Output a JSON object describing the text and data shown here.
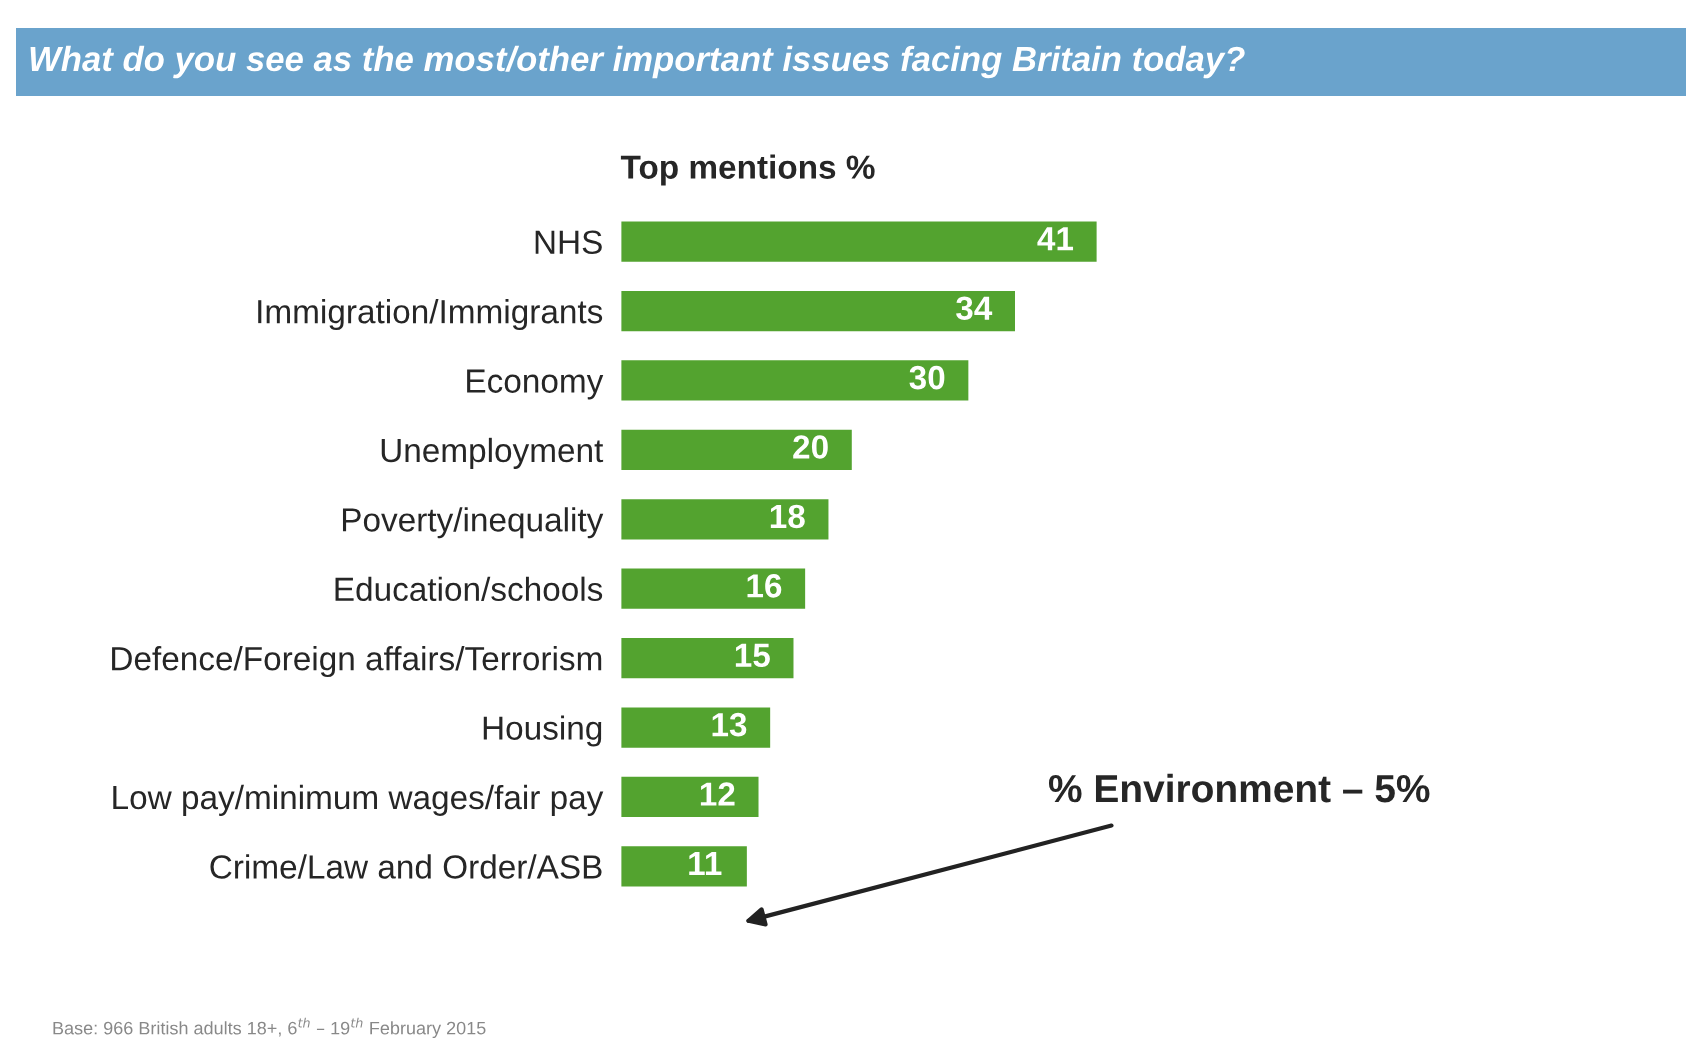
{
  "chart_data": {
    "type": "bar",
    "orientation": "horizontal",
    "title": "What do you see as the most/other important issues facing Britain today?",
    "subtitle": "Top mentions %",
    "categories": [
      "NHS",
      "Immigration/Immigrants",
      "Economy",
      "Unemployment",
      "Poverty/inequality",
      "Education/schools",
      "Defence/Foreign affairs/Terrorism",
      "Housing",
      "Low pay/minimum wages/fair pay",
      "Crime/Law and Order/ASB"
    ],
    "values": [
      41,
      34,
      30,
      20,
      18,
      16,
      15,
      13,
      12,
      11
    ],
    "color": "#53a32f",
    "data_labels": true,
    "grid": false,
    "legend": false,
    "tick_labels": "y",
    "annotations": [
      "% Environment – 5%",
      "Base: 966 British adults 18+, 6$^{th}$ – 19$^{th}$ February 2015"
    ]
  }
}
